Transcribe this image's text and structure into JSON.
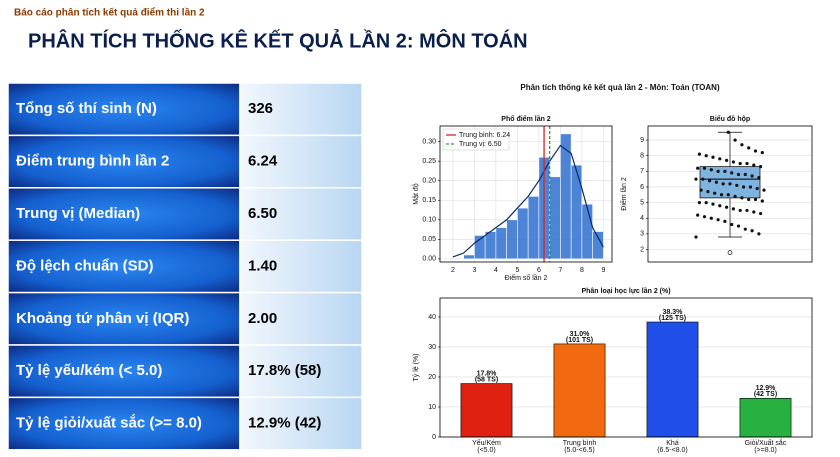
{
  "header": {
    "subtitle": "Báo cáo phân tích kết quả điểm thi lần 2",
    "title": "PHÂN TÍCH THỐNG KÊ KẾT QUẢ LẦN 2: MÔN TOÁN"
  },
  "table": {
    "rows": [
      [
        "Tổng số thí sinh (N)",
        "326"
      ],
      [
        "Điểm trung bình lần 2",
        "6.24"
      ],
      [
        "Trung vị (Median)",
        "6.50"
      ],
      [
        "Độ lệch chuẩn (SD)",
        "1.40"
      ],
      [
        "Khoảng tứ phân vị (IQR)",
        "2.00"
      ],
      [
        "Tỷ lệ yếu/kém (< 5.0)",
        "17.8% (58)"
      ],
      [
        "Tỷ lệ giỏi/xuất sắc (>= 8.0)",
        "12.9% (42)"
      ]
    ]
  },
  "figure_title": "Phân tích thống kê kết quả lần 2 - Môn: Toán (TOAN)",
  "chart_data": [
    {
      "type": "histogram",
      "title": "Phổ điểm lần 2",
      "x_label": "Điểm số lần 2",
      "y_label": "Mật độ",
      "bins": [
        2.5,
        3,
        3.5,
        4,
        4.5,
        5,
        5.5,
        6,
        6.5,
        7,
        7.5,
        8,
        8.5,
        9
      ],
      "values": [
        0.01,
        0.06,
        0.07,
        0.08,
        0.1,
        0.13,
        0.16,
        0.26,
        0.21,
        0.32,
        0.24,
        0.14,
        0.07
      ],
      "color": "#2f6fcf",
      "kde": {
        "x": [
          2,
          2.5,
          3,
          3.5,
          4,
          4.5,
          5,
          5.5,
          6,
          6.5,
          7,
          7.5,
          8,
          8.5,
          9
        ],
        "values": [
          0.005,
          0.015,
          0.04,
          0.06,
          0.08,
          0.1,
          0.13,
          0.16,
          0.2,
          0.25,
          0.29,
          0.27,
          0.18,
          0.08,
          0.03
        ],
        "color": "#0b2a6b"
      },
      "reference_lines": [
        {
          "name": "Trung bình: 6.24",
          "value": 6.24,
          "color": "#d62728",
          "dash": false
        },
        {
          "name": "Trung vị: 6.50",
          "value": 6.5,
          "color": "#2ca02c",
          "dash": true
        }
      ],
      "xlim": [
        1.4,
        9.4
      ],
      "ylim": [
        -0.008,
        0.34
      ],
      "xticks": [
        2,
        3,
        4,
        5,
        6,
        7,
        8,
        9
      ],
      "yticks": [
        {
          "value": 0,
          "label": "0.00"
        },
        0.05,
        {
          "value": 0.1,
          "label": "0.10"
        },
        0.15,
        {
          "value": 0.2,
          "label": "0.20"
        },
        0.25,
        {
          "value": 0.3,
          "label": "0.30"
        }
      ],
      "grid": true,
      "legend": "upper left"
    },
    {
      "type": "box",
      "title": "Biểu đồ hộp",
      "y_label": "Điểm lần 2",
      "q1": 5.3,
      "median": 6.5,
      "q3": 7.3,
      "whisker_low": 2.8,
      "whisker_high": 9.5,
      "outliers": [
        1.8
      ],
      "points": [
        2.8,
        3.0,
        3.2,
        3.3,
        3.5,
        3.6,
        3.8,
        3.9,
        4.0,
        4.1,
        4.2,
        4.3,
        4.4,
        4.5,
        4.5,
        4.6,
        4.7,
        4.8,
        4.9,
        5.0,
        5.0,
        5.1,
        5.2,
        5.2,
        5.3,
        5.4,
        5.5,
        5.5,
        5.6,
        5.7,
        5.8,
        5.8,
        5.9,
        6.0,
        6.0,
        6.1,
        6.2,
        6.2,
        6.3,
        6.4,
        6.5,
        6.5,
        6.6,
        6.7,
        6.8,
        6.8,
        6.9,
        7.0,
        7.0,
        7.1,
        7.2,
        7.2,
        7.3,
        7.4,
        7.5,
        7.5,
        7.6,
        7.7,
        7.8,
        7.9,
        8.0,
        8.1,
        8.2,
        8.3,
        8.5,
        8.7,
        9.0,
        9.5
      ],
      "color": "#7fb3e0",
      "point_color": "#111111",
      "ylim": [
        1.2,
        9.9
      ],
      "yticks": [
        2,
        3,
        4,
        5,
        6,
        7,
        8,
        9
      ],
      "grid": true
    },
    {
      "type": "bar",
      "title": "Phân loại học lực lần 2 (%)",
      "y_label": "Tỷ lệ (%)",
      "categories": [
        "Yếu/Kém",
        "Trung bình",
        "Khá",
        "Giỏi/Xuất sắc"
      ],
      "category_notes": [
        "(<5.0)",
        "(5.0-<6.5)",
        "(6.5-<8.0)",
        "(>=8.0)"
      ],
      "values": [
        17.8,
        31.0,
        38.3,
        12.9
      ],
      "value_labels": [
        "17.8%",
        "31.0%",
        "38.3%",
        "12.9%"
      ],
      "count_labels": [
        "(58 TS)",
        "(101 TS)",
        "(125 TS)",
        "(42 TS)"
      ],
      "colors": [
        "#e02010",
        "#f26a10",
        "#1f4fe8",
        "#28b040"
      ],
      "ylim": [
        0,
        46.3
      ],
      "yticks": [
        0,
        10,
        20,
        30,
        40
      ],
      "grid": true
    }
  ]
}
